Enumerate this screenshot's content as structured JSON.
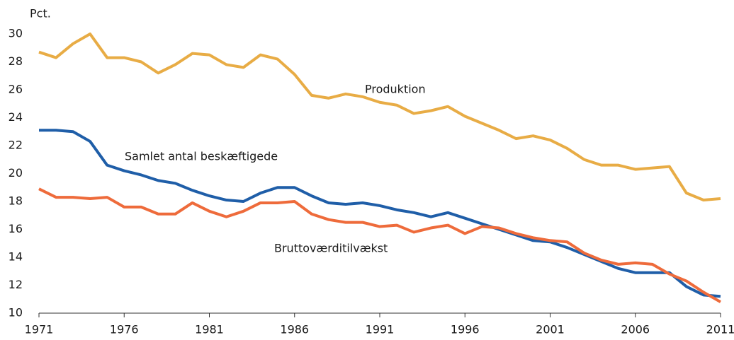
{
  "chart_data": {
    "type": "line",
    "y_label": "Pct.",
    "annotations": [
      "Produktion",
      "Samlet antal beskæftigede",
      "Bruttoværditilvækst"
    ],
    "x": [
      1971,
      1972,
      1973,
      1974,
      1975,
      1976,
      1977,
      1978,
      1979,
      1980,
      1981,
      1982,
      1983,
      1984,
      1985,
      1986,
      1987,
      1988,
      1989,
      1990,
      1991,
      1992,
      1993,
      1994,
      1995,
      1996,
      1997,
      1998,
      1999,
      2000,
      2001,
      2002,
      2003,
      2004,
      2005,
      2006,
      2007,
      2008,
      2009,
      2010,
      2011
    ],
    "series": [
      {
        "name": "Produktion",
        "color": "#e8ac45",
        "values": [
          28.7,
          28.3,
          29.3,
          30.0,
          28.3,
          28.3,
          28.0,
          27.2,
          27.8,
          28.6,
          28.5,
          27.8,
          27.6,
          28.5,
          28.2,
          27.1,
          25.6,
          25.4,
          25.7,
          25.5,
          25.1,
          24.9,
          24.3,
          24.5,
          24.8,
          24.1,
          23.6,
          23.1,
          22.5,
          22.7,
          22.4,
          21.8,
          21.0,
          20.6,
          20.6,
          20.3,
          20.4,
          20.5,
          18.6,
          18.1,
          18.2
        ]
      },
      {
        "name": "Samlet antal beskæftigede",
        "color": "#1f5ea8",
        "values": [
          23.1,
          23.1,
          23.0,
          22.3,
          20.6,
          20.2,
          19.9,
          19.5,
          19.3,
          18.8,
          18.4,
          18.1,
          18.0,
          18.6,
          19.0,
          19.0,
          18.4,
          17.9,
          17.8,
          17.9,
          17.7,
          17.4,
          17.2,
          16.9,
          17.2,
          16.8,
          16.4,
          16.0,
          15.6,
          15.2,
          15.1,
          14.7,
          14.2,
          13.7,
          13.2,
          12.9,
          12.9,
          12.9,
          11.9,
          11.3,
          11.2
        ]
      },
      {
        "name": "Bruttoværditilvækst",
        "color": "#ee6b3b",
        "values": [
          18.9,
          18.3,
          18.3,
          18.2,
          18.3,
          17.6,
          17.6,
          17.1,
          17.1,
          17.9,
          17.3,
          16.9,
          17.3,
          17.9,
          17.9,
          18.0,
          17.1,
          16.7,
          16.5,
          16.5,
          16.2,
          16.3,
          15.8,
          16.1,
          16.3,
          15.7,
          16.2,
          16.1,
          15.7,
          15.4,
          15.2,
          15.1,
          14.3,
          13.8,
          13.5,
          13.6,
          13.5,
          12.8,
          12.3,
          11.5,
          10.8
        ]
      }
    ],
    "xlim": [
      1971,
      2011
    ],
    "xticks": [
      1971,
      1976,
      1981,
      1986,
      1991,
      1996,
      2001,
      2006,
      2011
    ],
    "ylim": [
      10,
      30
    ],
    "yticks": [
      10,
      12,
      14,
      16,
      18,
      20,
      22,
      24,
      26,
      28,
      30
    ],
    "grid": false
  }
}
